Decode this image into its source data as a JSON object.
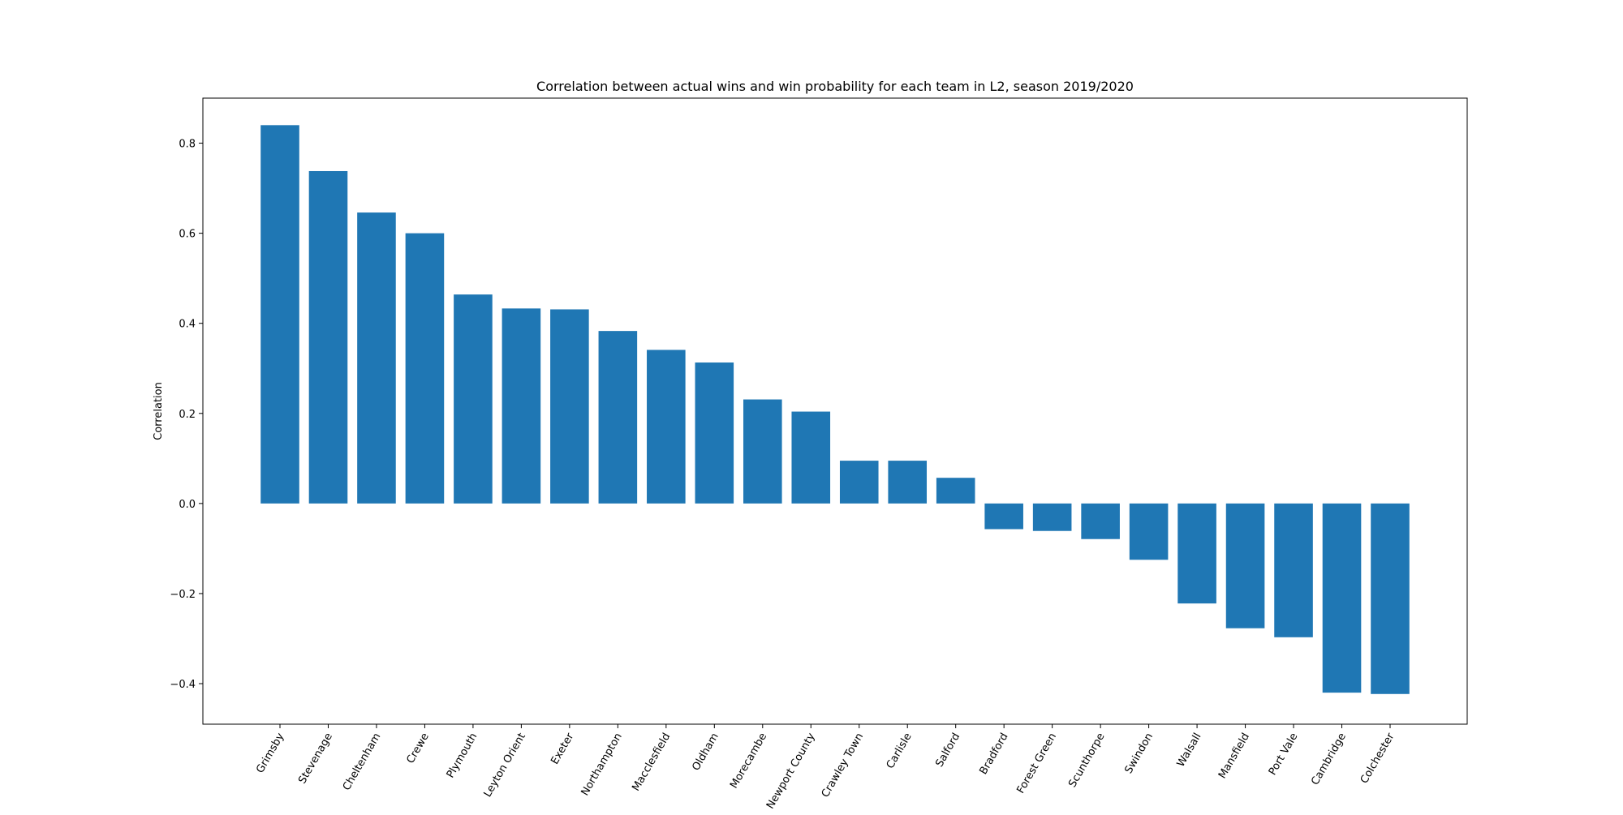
{
  "chart_data": {
    "type": "bar",
    "title": "Correlation between actual wins and win probability for each team in L2, season 2019/2020",
    "xlabel": "",
    "ylabel": "Correlation",
    "ylim": [
      -0.49,
      0.9
    ],
    "yticks": [
      -0.4,
      -0.2,
      0.0,
      0.2,
      0.4,
      0.6,
      0.8
    ],
    "ytick_labels": [
      "−0.4",
      "−0.2",
      "0.0",
      "0.2",
      "0.4",
      "0.6",
      "0.8"
    ],
    "grid": false,
    "categories": [
      "Grimsby",
      "Stevenage",
      "Cheltenham",
      "Crewe",
      "Plymouth",
      "Leyton Orient",
      "Exeter",
      "Northampton",
      "Macclesfield",
      "Oldham",
      "Morecambe",
      "Newport County",
      "Crawley Town",
      "Carlisle",
      "Salford",
      "Bradford",
      "Forest Green",
      "Scunthorpe",
      "Swindon",
      "Walsall",
      "Mansfield",
      "Port Vale",
      "Cambridge",
      "Colchester"
    ],
    "values": [
      0.84,
      0.738,
      0.646,
      0.6,
      0.464,
      0.433,
      0.431,
      0.383,
      0.341,
      0.313,
      0.231,
      0.204,
      0.095,
      0.095,
      0.057,
      -0.057,
      -0.061,
      -0.079,
      -0.125,
      -0.222,
      -0.277,
      -0.297,
      -0.42,
      -0.423
    ],
    "bar_color": "#1f77b4"
  }
}
